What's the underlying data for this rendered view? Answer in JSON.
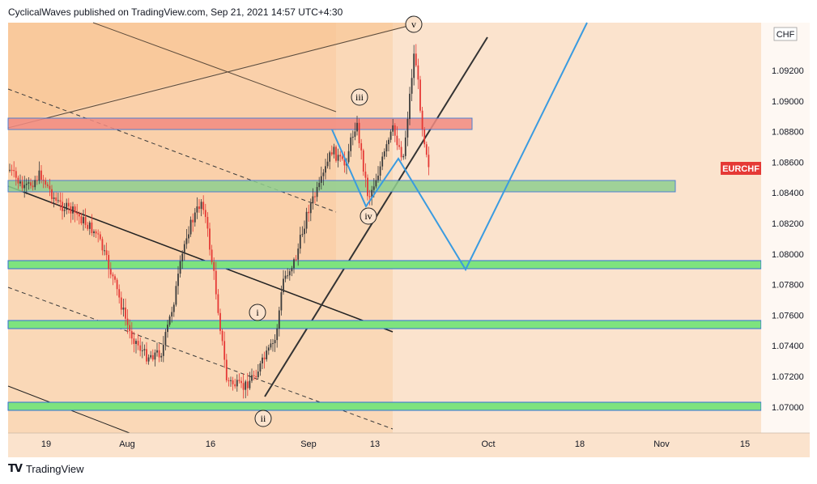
{
  "header": {
    "text": "CyclicalWaves published on TradingView.com, Sep 21, 2021 14:57 UTC+4:30"
  },
  "footer": {
    "logo_text": "TradingView"
  },
  "chart_data": {
    "type": "candlestick",
    "symbol": "EURCHF",
    "currency": "CHF",
    "last_price_label": "EURCHF",
    "y_ticks": [
      "1.09200",
      "1.09000",
      "1.08800",
      "1.08600",
      "1.08400",
      "1.08200",
      "1.08000",
      "1.07800",
      "1.07600",
      "1.07400",
      "1.07200",
      "1.07000"
    ],
    "y_range": [
      1.069,
      1.0962
    ],
    "x_ticks": [
      "19",
      "Aug",
      "16",
      "Sep",
      "13",
      "Oct",
      "18",
      "Nov",
      "15"
    ],
    "wave_labels": [
      "i",
      "ii",
      "iii",
      "iv",
      "v"
    ],
    "zones": [
      {
        "kind": "resistance",
        "color": "#f28b82",
        "low": 1.088,
        "high": 1.0888
      },
      {
        "kind": "support",
        "color": "#8fcf8f",
        "low": 1.0841,
        "high": 1.0849
      },
      {
        "kind": "support",
        "color": "#7ee37e",
        "low": 1.0792,
        "high": 1.0797
      },
      {
        "kind": "support",
        "color": "#7ee37e",
        "low": 1.0752,
        "high": 1.0757
      },
      {
        "kind": "support",
        "color": "#7ee37e",
        "low": 1.0698,
        "high": 1.0703
      }
    ],
    "projection_path": [
      1.0871,
      1.0832,
      1.079,
      1.096
    ],
    "colors": {
      "up": "#3b3b3b",
      "down": "#e53935",
      "projection": "#3a9be0",
      "label_bg": "#e53935",
      "background": "#fbe3cd"
    }
  }
}
